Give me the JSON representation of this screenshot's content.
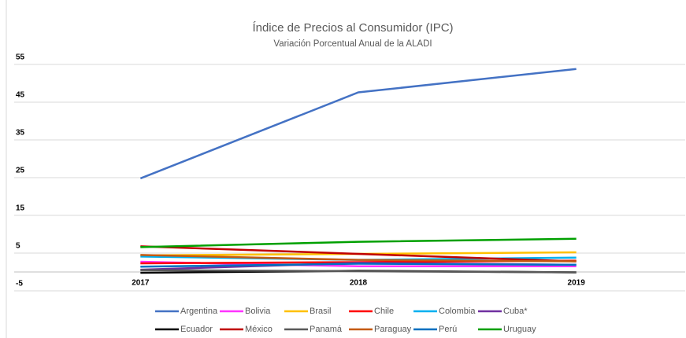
{
  "chart_data": {
    "type": "line",
    "title": "Índice de Precios al Consumidor (IPC)",
    "subtitle": "Variación Porcentual Anual de la ALADI",
    "categories": [
      "2017",
      "2018",
      "2019"
    ],
    "ylim": [
      -5,
      55
    ],
    "yticks": [
      -5,
      5,
      15,
      25,
      35,
      45,
      55
    ],
    "grid": true,
    "series": [
      {
        "name": "Argentina",
        "color": "#4472c4",
        "values": [
          24.8,
          47.6,
          53.8
        ]
      },
      {
        "name": "Bolivia",
        "color": "#ff33ff",
        "values": [
          2.7,
          1.5,
          1.5
        ]
      },
      {
        "name": "Brasil",
        "color": "#ffc000",
        "values": [
          4.4,
          4.8,
          5.2
        ]
      },
      {
        "name": "Chile",
        "color": "#ff0000",
        "values": [
          2.3,
          2.6,
          3.0
        ]
      },
      {
        "name": "Colombia",
        "color": "#00b0f0",
        "values": [
          4.1,
          3.2,
          3.8
        ]
      },
      {
        "name": "Cuba*",
        "color": "#7030a0",
        "values": [
          0.6,
          2.4,
          1.9
        ]
      },
      {
        "name": "Ecuador",
        "color": "#000000",
        "values": [
          -0.2,
          0.3,
          -0.1
        ]
      },
      {
        "name": "México",
        "color": "#c00000",
        "values": [
          6.8,
          4.8,
          2.8
        ]
      },
      {
        "name": "Panamá",
        "color": "#595959",
        "values": [
          0.5,
          0.2,
          -0.1
        ]
      },
      {
        "name": "Paraguay",
        "color": "#c55a11",
        "values": [
          4.5,
          3.2,
          2.8
        ]
      },
      {
        "name": "Perú",
        "color": "#0070c0",
        "values": [
          1.4,
          2.2,
          1.9
        ]
      },
      {
        "name": "Uruguay",
        "color": "#00a000",
        "values": [
          6.6,
          8.0,
          8.8
        ]
      }
    ]
  }
}
